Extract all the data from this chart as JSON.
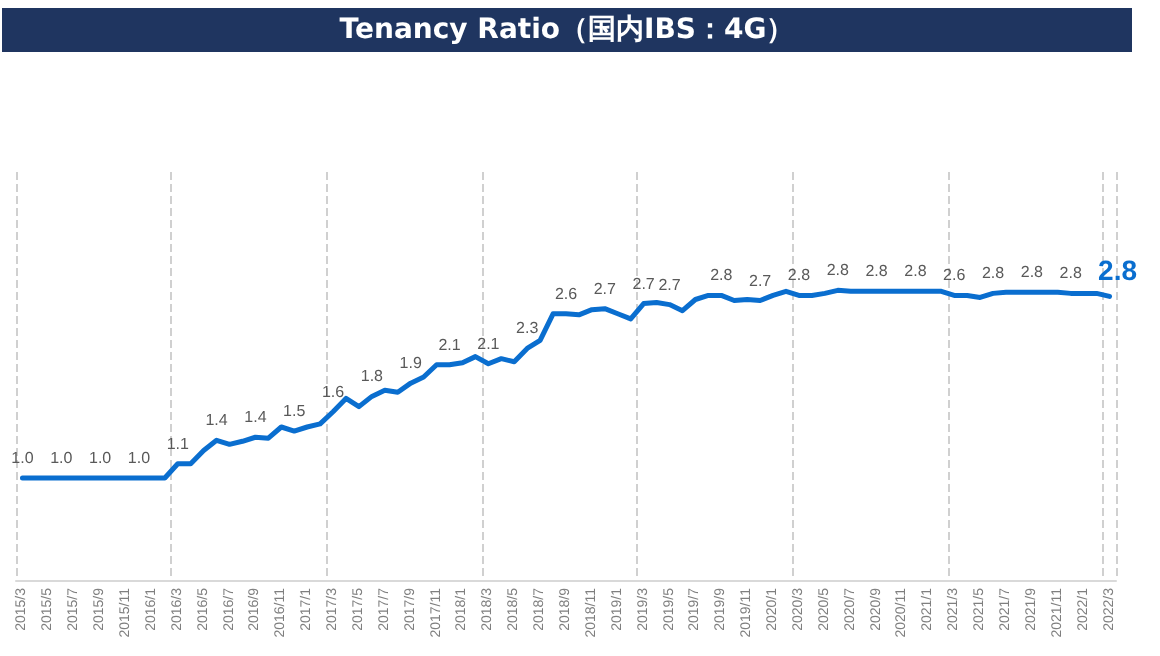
{
  "chart_data": {
    "type": "line",
    "title": "Tenancy Ratio（国内IBS：4G）",
    "ylim": [
      0,
      4
    ],
    "tick_labels": "x",
    "grid": "x",
    "marker": "none",
    "line_style": "solid",
    "annotations": [
      {
        "text": "2.6",
        "x": "2021/3",
        "y": 2.79
      }
    ],
    "categories": [
      "2015/3",
      null,
      "2015/5",
      null,
      "2015/7",
      null,
      "2015/9",
      null,
      "2015/11",
      null,
      "2016/1",
      null,
      "2016/3",
      null,
      "2016/5",
      null,
      "2016/7",
      null,
      "2016/9",
      null,
      "2016/11",
      null,
      "2017/1",
      null,
      "2017/3",
      null,
      "2017/5",
      null,
      "2017/7",
      null,
      "2017/9",
      null,
      "2017/11",
      null,
      "2018/1",
      null,
      "2018/3",
      null,
      "2018/5",
      null,
      "2018/7",
      null,
      "2018/9",
      null,
      "2018/11",
      null,
      "2019/1",
      null,
      "2019/3",
      null,
      "2019/5",
      null,
      "2019/7",
      null,
      "2019/9",
      null,
      "2019/11",
      null,
      "2020/1",
      null,
      "2020/3",
      null,
      "2020/5",
      null,
      "2020/7",
      null,
      "2020/9",
      null,
      "2020/11",
      null,
      "2021/1",
      null,
      "2021/3",
      null,
      "2021/5",
      null,
      "2021/7",
      null,
      "2021/9",
      null,
      "2021/11",
      null,
      "2022/1",
      null,
      "2022/3"
    ],
    "series": [
      {
        "color": "#0a6ecf",
        "values": [
          1.0,
          1.0,
          1.0,
          1.0,
          1.0,
          1.0,
          1.0,
          1.0,
          1.0,
          1.0,
          1.0,
          1.0,
          1.14,
          1.14,
          1.27,
          1.37,
          1.33,
          1.36,
          1.4,
          1.39,
          1.5,
          1.46,
          1.5,
          1.53,
          1.65,
          1.78,
          1.7,
          1.8,
          1.86,
          1.84,
          1.93,
          1.99,
          2.11,
          2.11,
          2.13,
          2.19,
          2.12,
          2.17,
          2.14,
          2.27,
          2.35,
          2.61,
          2.61,
          2.6,
          2.65,
          2.66,
          2.61,
          2.56,
          2.71,
          2.72,
          2.7,
          2.64,
          2.75,
          2.79,
          2.79,
          2.74,
          2.75,
          2.74,
          2.79,
          2.83,
          2.79,
          2.79,
          2.81,
          2.84,
          2.83,
          2.83,
          2.83,
          2.83,
          2.83,
          2.83,
          2.83,
          2.83,
          2.79,
          2.79,
          2.77,
          2.81,
          2.82,
          2.82,
          2.82,
          2.82,
          2.82,
          2.81,
          2.81,
          2.81,
          2.78
        ],
        "value_labels": [
          "1.0",
          null,
          null,
          "1.0",
          null,
          null,
          "1.0",
          null,
          null,
          "1.0",
          null,
          null,
          "1.1",
          null,
          null,
          "1.4",
          null,
          null,
          "1.4",
          null,
          null,
          "1.5",
          null,
          null,
          "1.6",
          null,
          null,
          "1.8",
          null,
          null,
          "1.9",
          null,
          null,
          "2.1",
          null,
          null,
          "2.1",
          null,
          null,
          "2.3",
          null,
          null,
          "2.6",
          null,
          null,
          "2.7",
          null,
          null,
          "2.7",
          null,
          "2.7",
          null,
          null,
          null,
          "2.8",
          null,
          null,
          "2.7",
          null,
          null,
          "2.8",
          null,
          null,
          "2.8",
          null,
          null,
          "2.8",
          null,
          null,
          "2.8",
          null,
          null,
          null,
          null,
          null,
          "2.8",
          null,
          null,
          "2.8",
          null,
          null,
          "2.8",
          null,
          null,
          "2.8"
        ]
      }
    ]
  }
}
